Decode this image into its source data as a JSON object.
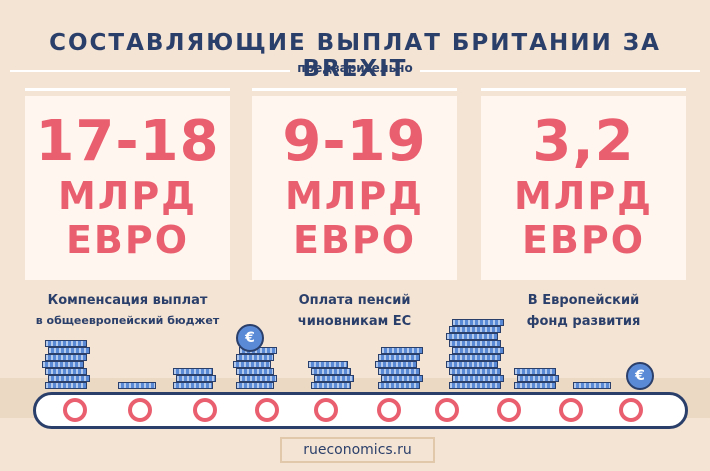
{
  "title": "СОСТАВЛЯЮЩИЕ ВЫПЛАТ БРИТАНИИ ЗА BREXIT",
  "subtitle": "предварительно",
  "panels": [
    {
      "value": "17-18",
      "unit_line1": "МЛРД",
      "unit_line2": "ЕВРО",
      "caption_line1": "Компенсация выплат",
      "caption_line2": "в общеевропейский бюджет"
    },
    {
      "value": "9-19",
      "unit_line1": "МЛРД",
      "unit_line2": "ЕВРО",
      "caption_line1": "Оплата пенсий",
      "caption_line2": "чиновникам ЕС"
    },
    {
      "value": "3,2",
      "unit_line1": "МЛРД",
      "unit_line2": "ЕВРО",
      "caption_line1": "В Европейский",
      "caption_line2": "фонд развития"
    }
  ],
  "coin_symbol": "€",
  "footer": "rueconomics.ru",
  "colors": {
    "background": "#f4e4d3",
    "panel": "#fff7ef",
    "accent": "#ea5f6f",
    "navy": "#2b3f6b",
    "coin": "#5a8ad6"
  }
}
